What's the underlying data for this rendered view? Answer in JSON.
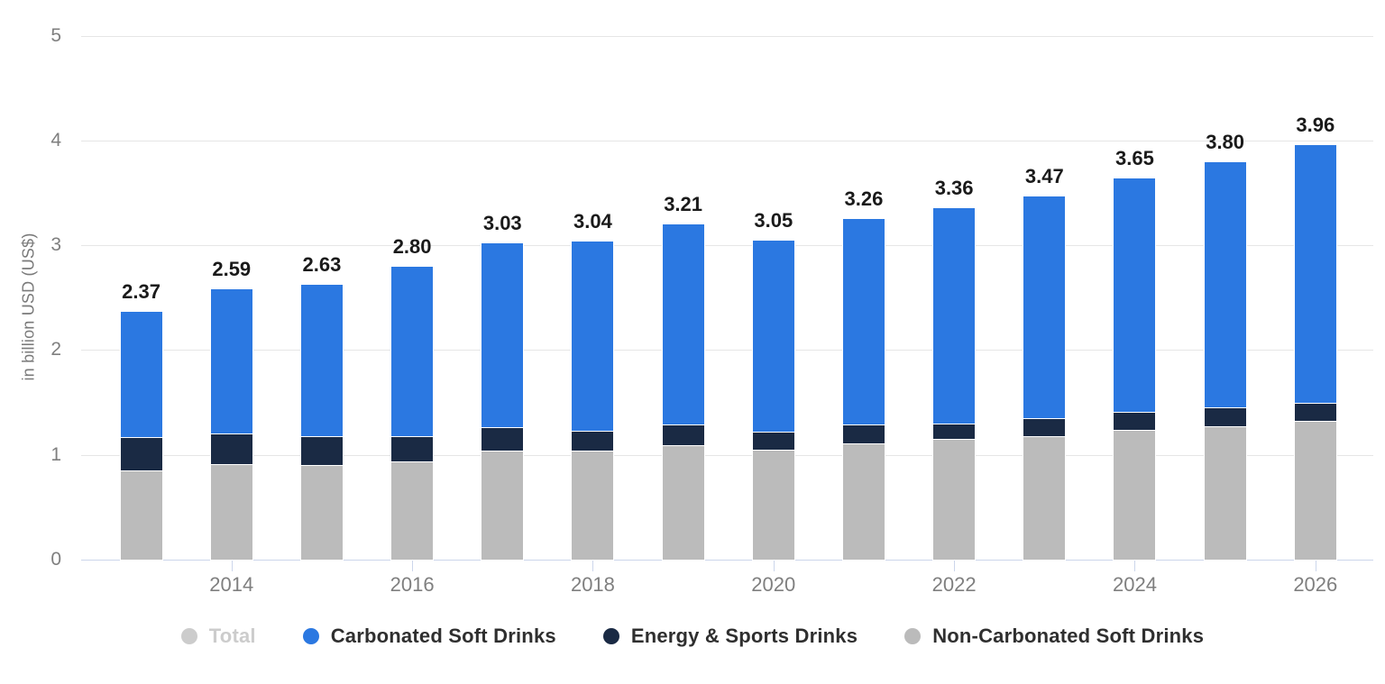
{
  "chart_data": {
    "type": "bar",
    "stacked": true,
    "title": "",
    "xlabel": "",
    "ylabel": "in billion USD (US$)",
    "ylim": [
      0,
      5
    ],
    "ytick_step": 1,
    "ytick_labels": [
      "0",
      "1",
      "2",
      "3",
      "4",
      "5"
    ],
    "grid": "horizontal",
    "legend_position": "bottom",
    "categories": [
      2013,
      2014,
      2015,
      2016,
      2017,
      2018,
      2019,
      2020,
      2021,
      2022,
      2023,
      2024,
      2025,
      2026
    ],
    "xtick_labels": [
      "2014",
      "2016",
      "2018",
      "2020",
      "2022",
      "2024",
      "2026"
    ],
    "series": [
      {
        "name": "Non-Carbonated Soft Drinks",
        "color": "#bbbbbb",
        "values": [
          0.85,
          0.91,
          0.9,
          0.94,
          1.04,
          1.04,
          1.09,
          1.05,
          1.11,
          1.15,
          1.18,
          1.24,
          1.27,
          1.32
        ]
      },
      {
        "name": "Energy & Sports Drinks",
        "color": "#1a2a44",
        "values": [
          0.32,
          0.29,
          0.28,
          0.24,
          0.22,
          0.19,
          0.2,
          0.17,
          0.18,
          0.15,
          0.17,
          0.17,
          0.18,
          0.18
        ]
      },
      {
        "name": "Carbonated Soft Drinks",
        "color": "#2b78e1",
        "values": [
          1.2,
          1.39,
          1.45,
          1.62,
          1.77,
          1.81,
          1.92,
          1.83,
          1.97,
          2.06,
          2.12,
          2.24,
          2.35,
          2.46
        ]
      }
    ],
    "totals": [
      "2.37",
      "2.59",
      "2.63",
      "2.80",
      "3.03",
      "3.04",
      "3.21",
      "3.05",
      "3.26",
      "3.36",
      "3.47",
      "3.65",
      "3.80",
      "3.96"
    ],
    "legend": [
      {
        "label": "Total",
        "color": "#cccccc",
        "inactive": true
      },
      {
        "label": "Carbonated Soft Drinks",
        "color": "#2b78e1",
        "inactive": false
      },
      {
        "label": "Energy & Sports Drinks",
        "color": "#1a2a44",
        "inactive": false
      },
      {
        "label": "Non-Carbonated Soft Drinks",
        "color": "#bbbbbb",
        "inactive": false
      }
    ],
    "colors": {
      "grid": "#e6e6e6",
      "axis_line": "#ccd6eb",
      "tick_label": "#7f7f7f",
      "value_label": "#1a1a1a"
    }
  }
}
